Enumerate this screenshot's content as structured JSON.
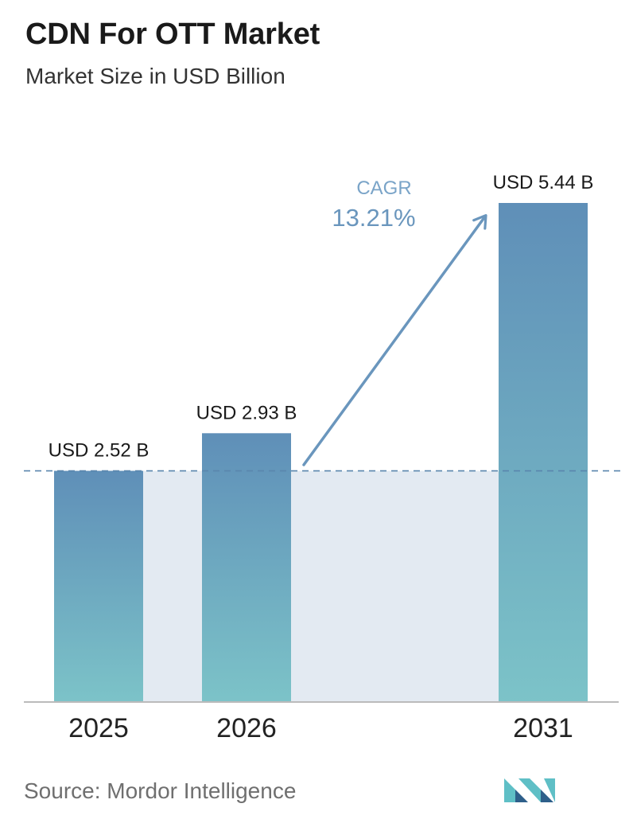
{
  "header": {
    "title": "CDN For OTT Market",
    "subtitle": "Market Size in USD Billion"
  },
  "chart_data": {
    "type": "bar",
    "categories": [
      "2025",
      "2026",
      "2031"
    ],
    "values": [
      2.52,
      2.93,
      5.44
    ],
    "value_labels": [
      "USD 2.52 B",
      "USD 2.93 B",
      "USD 5.44 B"
    ],
    "ylim": [
      0,
      5.44
    ],
    "grid": false,
    "annotation": {
      "label": "CAGR",
      "value": "13.21%"
    },
    "colors": {
      "bar_top": "#5f8fb8",
      "bar_bottom": "#7cc3c8",
      "band": "#e3eaf2",
      "arrow": "#6a96bd",
      "cagr_label": "#7aa4c8",
      "cagr_value": "#6a96bd",
      "baseline_dash": "#5a86ad",
      "axis": "#bbbbbb"
    }
  },
  "footer": {
    "source": "Source:  Mordor Intelligence",
    "logo_colors": [
      "#5fbfc6",
      "#2e5f8a"
    ]
  }
}
